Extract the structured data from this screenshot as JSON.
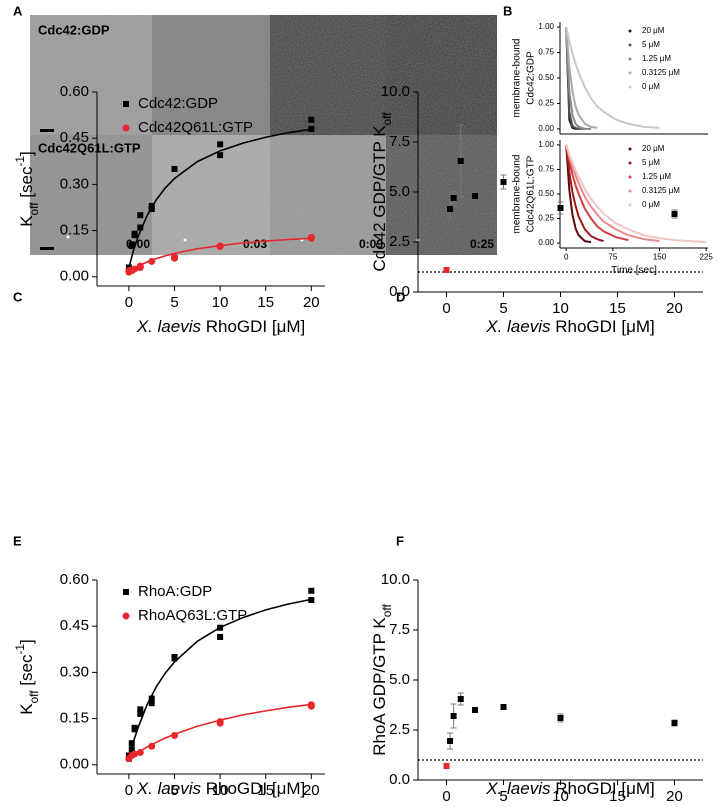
{
  "images": {
    "panel": "A",
    "rows": [
      "Cdc42:GDP",
      "Cdc42Q61L:GTP"
    ],
    "times": [
      "0:00",
      "0:03",
      "0:09",
      "0:25"
    ]
  },
  "chart_data": [
    {
      "type": "line",
      "panel": "B",
      "ylabel": [
        "membrane-bound",
        "Cdc42:GDP"
      ],
      "x": [
        0,
        5,
        10,
        15,
        20,
        30,
        40,
        50,
        60,
        80,
        100,
        125,
        150,
        175,
        200,
        225
      ],
      "xlim": [
        -10,
        228
      ],
      "ylim": [
        -0.05,
        1.05
      ],
      "yticks": [
        {
          "value": 0,
          "label": "0.00"
        },
        {
          "value": 0.25,
          "label": "0.25"
        },
        {
          "value": 0.5,
          "label": "0.50"
        },
        {
          "value": 0.75,
          "label": "0.75"
        },
        {
          "value": 1,
          "label": "1.00"
        }
      ],
      "legend": "upper right",
      "series": [
        {
          "name": "20 μM",
          "color": "#222222",
          "values": [
            1,
            0.09,
            0.01,
            0,
            0,
            null,
            null,
            null,
            null,
            null,
            null,
            null,
            null,
            null,
            null,
            null
          ]
        },
        {
          "name": "5 μM",
          "color": "#555555",
          "values": [
            1,
            0.17,
            0.03,
            0.01,
            0,
            0,
            null,
            null,
            null,
            null,
            null,
            null,
            null,
            null,
            null,
            null
          ]
        },
        {
          "name": "1.25 μM",
          "color": "#888888",
          "values": [
            1,
            0.37,
            0.14,
            0.05,
            0.02,
            0,
            0,
            null,
            null,
            null,
            null,
            null,
            null,
            null,
            null,
            null
          ]
        },
        {
          "name": "0.3125 μM",
          "color": "#aaaaaa",
          "values": [
            1,
            0.61,
            0.37,
            0.22,
            0.14,
            0.05,
            0.02,
            0.01,
            null,
            null,
            null,
            null,
            null,
            null,
            null,
            null
          ]
        },
        {
          "name": "0 μM",
          "color": "#c8c8c8",
          "values": [
            1,
            0.86,
            0.74,
            0.64,
            0.55,
            0.41,
            0.3,
            0.22,
            0.17,
            0.09,
            0.05,
            0.02,
            0.01,
            null,
            null,
            null
          ]
        }
      ]
    },
    {
      "type": "line",
      "ylabel": [
        "membrane-bound",
        "Cdc42Q61L:GTP"
      ],
      "xlabel": [
        "Time [sec]"
      ],
      "x": [
        0,
        5,
        10,
        15,
        20,
        30,
        40,
        50,
        60,
        80,
        100,
        125,
        150,
        175,
        200,
        225
      ],
      "xlim": [
        -10,
        228
      ],
      "ylim": [
        -0.05,
        1.05
      ],
      "xticks": [
        0,
        75,
        150,
        225
      ],
      "yticks": [
        {
          "value": 0,
          "label": "0.00"
        },
        {
          "value": 0.25,
          "label": "0.25"
        },
        {
          "value": 0.5,
          "label": "0.50"
        },
        {
          "value": 0.75,
          "label": "0.75"
        },
        {
          "value": 1,
          "label": "1.00"
        }
      ],
      "legend": "upper right",
      "series": [
        {
          "name": "20 μM",
          "color": "#5a0a0a",
          "values": [
            1,
            0.54,
            0.29,
            0.15,
            0.08,
            0.02,
            0.01,
            null,
            null,
            null,
            null,
            null,
            null,
            null,
            null,
            null
          ]
        },
        {
          "name": "5 μM",
          "color": "#a01818",
          "values": [
            1,
            0.72,
            0.52,
            0.38,
            0.27,
            0.14,
            0.07,
            0.04,
            0.02,
            null,
            null,
            null,
            null,
            null,
            null,
            null
          ]
        },
        {
          "name": "1.25 μM",
          "color": "#d04040",
          "values": [
            1,
            0.84,
            0.7,
            0.59,
            0.5,
            0.35,
            0.25,
            0.17,
            0.12,
            0.06,
            0.03,
            null,
            null,
            null,
            null,
            null
          ]
        },
        {
          "name": "0.3125 μM",
          "color": "#e88a8a",
          "values": [
            1,
            0.88,
            0.78,
            0.69,
            0.61,
            0.47,
            0.37,
            0.29,
            0.22,
            0.14,
            0.08,
            0.04,
            0.02,
            null,
            null,
            null
          ]
        },
        {
          "name": "0 μM",
          "color": "#f2c4c4",
          "values": [
            1,
            0.9,
            0.82,
            0.74,
            0.67,
            0.55,
            0.45,
            0.37,
            0.3,
            0.2,
            0.14,
            0.08,
            0.05,
            0.03,
            0.02,
            0.01
          ]
        }
      ]
    },
    {
      "type": "scatter",
      "panel": "C",
      "ylabel": [
        "K",
        "off",
        " [sec",
        "-1",
        "]"
      ],
      "xlabel": [
        "X. laevis",
        " RhoGDI [μM]"
      ],
      "xlim": [
        -3.5,
        21.5
      ],
      "ylim": [
        -0.03,
        0.6
      ],
      "xticks": [
        0,
        5,
        10,
        15,
        20
      ],
      "yticks": [
        {
          "value": 0,
          "label": "0.00"
        },
        {
          "value": 0.15,
          "label": "0.15"
        },
        {
          "value": 0.3,
          "label": "0.30"
        },
        {
          "value": 0.45,
          "label": "0.45"
        },
        {
          "value": 0.6,
          "label": "0.60"
        }
      ],
      "legend": "upper left",
      "series": [
        {
          "name": "Cdc42:GDP",
          "color": "#000000",
          "marker": "square",
          "x": [
            0,
            0.3125,
            0.3125,
            0.625,
            0.625,
            1.25,
            1.25,
            2.5,
            2.5,
            5,
            5,
            10,
            10,
            20,
            20
          ],
          "values": [
            0.03,
            0.1,
            0.105,
            0.14,
            0.135,
            0.16,
            0.2,
            0.22,
            0.23,
            0.35,
            0.35,
            0.43,
            0.395,
            0.51,
            0.48
          ],
          "fit": {
            "x": [
              0,
              0.5,
              1,
              2,
              3,
              4,
              5,
              7.5,
              10,
              12.5,
              15,
              17.5,
              20
            ],
            "values": [
              0.03,
              0.085,
              0.13,
              0.199,
              0.25,
              0.289,
              0.319,
              0.374,
              0.409,
              0.434,
              0.453,
              0.468,
              0.479
            ]
          }
        },
        {
          "name": "Cdc42Q61L:GTP",
          "color": "#e8262b",
          "marker": "circle",
          "x": [
            0,
            0,
            0.3125,
            0.3125,
            0.625,
            1.25,
            1.25,
            2.5,
            5,
            5,
            10,
            10,
            20,
            20
          ],
          "values": [
            0.015,
            0.02,
            0.02,
            0.022,
            0.025,
            0.03,
            0.035,
            0.05,
            0.06,
            0.065,
            0.1,
            0.098,
            0.125,
            0.128
          ],
          "fit": {
            "x": [
              0,
              0.5,
              1,
              2,
              3,
              4,
              5,
              7.5,
              10,
              12.5,
              15,
              17.5,
              20
            ],
            "values": [
              0.018,
              0.027,
              0.035,
              0.048,
              0.059,
              0.068,
              0.076,
              0.091,
              0.101,
              0.11,
              0.116,
              0.121,
              0.125
            ]
          }
        }
      ]
    },
    {
      "type": "scatter",
      "panel": "D",
      "ylabel": [
        "Cdc42 GDP/GTP K",
        "off"
      ],
      "xlabel": [
        "X. laevis",
        " RhoGDI [μM]"
      ],
      "xlim": [
        -2.5,
        22.5
      ],
      "ylim": [
        0,
        10
      ],
      "xticks": [
        0,
        5,
        10,
        15,
        20
      ],
      "yticks": [
        {
          "value": 0,
          "label": "0.0"
        },
        {
          "value": 2.5,
          "label": "2.5"
        },
        {
          "value": 5,
          "label": "5.0"
        },
        {
          "value": 7.5,
          "label": "7.5"
        },
        {
          "value": 10,
          "label": "10.0"
        }
      ],
      "hline": 1,
      "series": [
        {
          "color": "#000000",
          "marker": "square",
          "x": [
            0.3125,
            0.625,
            1.25,
            2.5,
            5,
            10,
            20
          ],
          "values": [
            4.15,
            4.7,
            6.55,
            4.8,
            5.5,
            4.2,
            3.9
          ],
          "errors": [
            0.45,
            0.3,
            1.8,
            0.15,
            0.35,
            0.3,
            0.2
          ]
        },
        {
          "color": "#e8262b",
          "marker": "square",
          "x": [
            0
          ],
          "values": [
            1.1
          ]
        }
      ]
    },
    {
      "type": "scatter",
      "panel": "E",
      "ylabel": [
        "K",
        "off",
        " [sec",
        "-1",
        "]"
      ],
      "xlabel": [
        "X. laevis",
        " RhoGDI [μM]"
      ],
      "xlim": [
        -3.5,
        21.5
      ],
      "ylim": [
        -0.03,
        0.6
      ],
      "xticks": [
        0,
        5,
        10,
        15,
        20
      ],
      "yticks": [
        {
          "value": 0,
          "label": "0.00"
        },
        {
          "value": 0.15,
          "label": "0.15"
        },
        {
          "value": 0.3,
          "label": "0.30"
        },
        {
          "value": 0.45,
          "label": "0.45"
        },
        {
          "value": 0.6,
          "label": "0.60"
        }
      ],
      "legend": "upper left",
      "series": [
        {
          "name": "RhoA:GDP",
          "color": "#000000",
          "marker": "square",
          "x": [
            0,
            0,
            0.3125,
            0.3125,
            0.625,
            0.625,
            1.25,
            1.25,
            2.5,
            2.5,
            5,
            5,
            10,
            10,
            20,
            20
          ],
          "values": [
            0.02,
            0.03,
            0.05,
            0.07,
            0.115,
            0.12,
            0.165,
            0.18,
            0.2,
            0.215,
            0.35,
            0.345,
            0.445,
            0.415,
            0.565,
            0.535
          ],
          "fit": {
            "x": [
              0,
              0.5,
              1,
              2,
              3,
              4,
              5,
              7.5,
              10,
              12.5,
              15,
              17.5,
              20
            ],
            "values": [
              0.02,
              0.075,
              0.12,
              0.196,
              0.253,
              0.298,
              0.334,
              0.401,
              0.446,
              0.478,
              0.503,
              0.522,
              0.537
            ]
          }
        },
        {
          "name": "RhoAQ63L:GTP",
          "color": "#e8262b",
          "marker": "circle",
          "x": [
            0,
            0.3125,
            0.625,
            1.25,
            2.5,
            5,
            10,
            10,
            20,
            20
          ],
          "values": [
            0.02,
            0.03,
            0.035,
            0.04,
            0.06,
            0.095,
            0.14,
            0.135,
            0.19,
            0.195
          ],
          "fit": {
            "x": [
              0,
              0.5,
              1,
              2,
              3,
              4,
              5,
              7.5,
              10,
              12.5,
              15,
              17.5,
              20
            ],
            "values": [
              0.02,
              0.03,
              0.04,
              0.058,
              0.073,
              0.087,
              0.099,
              0.125,
              0.145,
              0.162,
              0.175,
              0.187,
              0.196
            ]
          }
        }
      ]
    },
    {
      "type": "scatter",
      "panel": "F",
      "ylabel": [
        "RhoA GDP/GTP K",
        "off"
      ],
      "xlabel": [
        "X. laevis",
        " RhoGDI [μM]"
      ],
      "xlim": [
        -2.5,
        22.5
      ],
      "ylim": [
        0,
        10
      ],
      "xticks": [
        0,
        5,
        10,
        15,
        20
      ],
      "yticks": [
        {
          "value": 0,
          "label": "0.0"
        },
        {
          "value": 2.5,
          "label": "2.5"
        },
        {
          "value": 5,
          "label": "5.0"
        },
        {
          "value": 7.5,
          "label": "7.5"
        },
        {
          "value": 10,
          "label": "10.0"
        }
      ],
      "hline": 1,
      "series": [
        {
          "color": "#000000",
          "marker": "square",
          "x": [
            0.3125,
            0.625,
            1.25,
            2.5,
            5,
            10,
            20
          ],
          "values": [
            1.95,
            3.2,
            4.05,
            3.5,
            3.65,
            3.1,
            2.85
          ],
          "errors": [
            0.4,
            0.6,
            0.3,
            0.1,
            0.1,
            0.2,
            0.15
          ]
        },
        {
          "color": "#e8262b",
          "marker": "square",
          "x": [
            0
          ],
          "values": [
            0.7
          ]
        }
      ]
    }
  ]
}
